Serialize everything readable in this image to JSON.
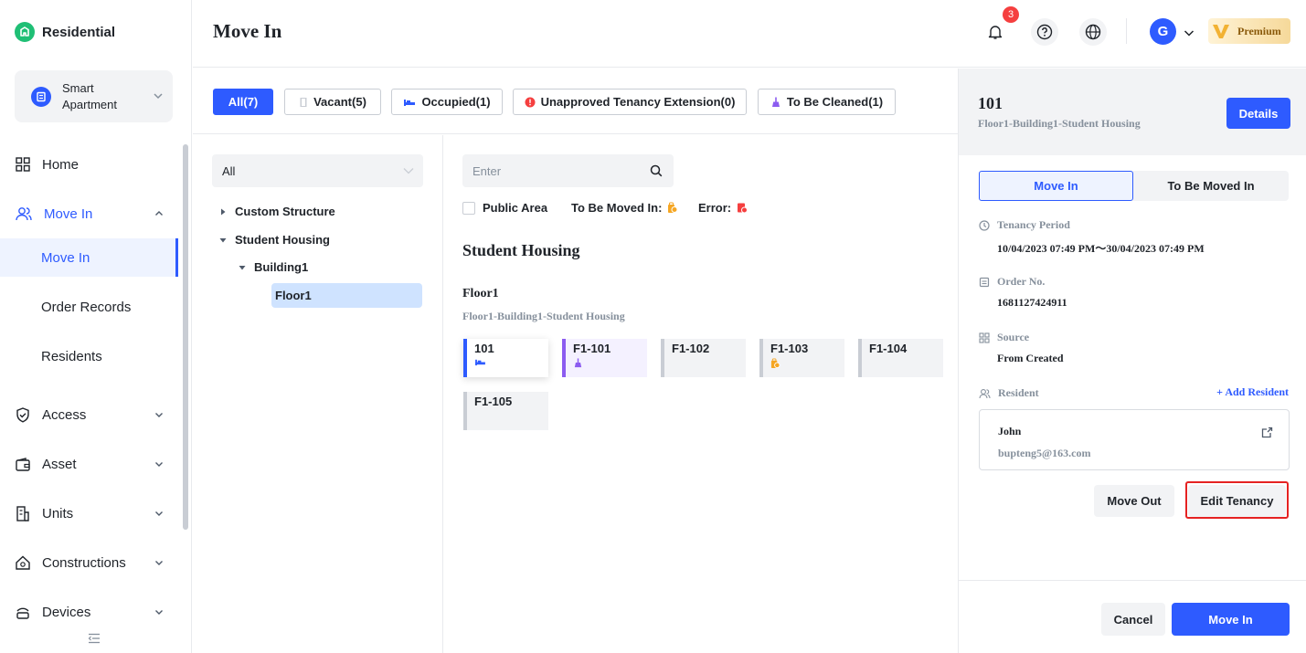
{
  "app": {
    "name": "Residential"
  },
  "project": {
    "name": "Smart Apartment"
  },
  "sidebar": {
    "items": [
      {
        "label": "Home"
      },
      {
        "label": "Move In"
      },
      {
        "label": "Access"
      },
      {
        "label": "Asset"
      },
      {
        "label": "Units"
      },
      {
        "label": "Constructions"
      },
      {
        "label": "Devices"
      }
    ],
    "move_in_sub": [
      {
        "label": "Move In"
      },
      {
        "label": "Order Records"
      },
      {
        "label": "Residents"
      }
    ]
  },
  "header": {
    "title": "Move In",
    "notification_count": "3",
    "avatar_letter": "G",
    "premium_label": "Premium"
  },
  "filter_tabs": [
    {
      "label": "All(7)",
      "icon": "none"
    },
    {
      "label": "Vacant(5)",
      "icon": "door-icon"
    },
    {
      "label": "Occupied(1)",
      "icon": "bed-icon"
    },
    {
      "label": "Unapproved Tenancy Extension(0)",
      "icon": "alert-icon"
    },
    {
      "label": "To Be Cleaned(1)",
      "icon": "broom-icon"
    }
  ],
  "tree": {
    "select_value": "All",
    "nodes": [
      {
        "label": "Custom Structure"
      },
      {
        "label": "Student Housing"
      },
      {
        "label": "Building1"
      },
      {
        "label": "Floor1"
      }
    ]
  },
  "rooms_panel": {
    "search_placeholder": "Enter",
    "public_area_label": "Public Area",
    "to_be_moved_in_label": "To Be Moved In:",
    "error_label": "Error:",
    "section_title": "Student Housing",
    "floor_name": "Floor1",
    "floor_path": "Floor1-Building1-Student Housing",
    "rooms": [
      {
        "name": "101",
        "status": "occupied"
      },
      {
        "name": "F1-101",
        "status": "to-be-cleaned"
      },
      {
        "name": "F1-102",
        "status": "vacant"
      },
      {
        "name": "F1-103",
        "status": "to-be-moved-in"
      },
      {
        "name": "F1-104",
        "status": "vacant"
      },
      {
        "name": "F1-105",
        "status": "vacant"
      }
    ]
  },
  "detail": {
    "room_number": "101",
    "room_path": "Floor1-Building1-Student Housing",
    "details_button": "Details",
    "tabs": [
      {
        "label": "Move In"
      },
      {
        "label": "To Be Moved In"
      }
    ],
    "tenancy_period_label": "Tenancy Period",
    "tenancy_period_value": "10/04/2023 07:49 PM～30/04/2023 07:49 PM",
    "order_no_label": "Order No.",
    "order_no_value": "1681127424911",
    "source_label": "Source",
    "source_value": "From Created",
    "resident_label": "Resident",
    "add_resident": "+ Add Resident",
    "resident_name": "John",
    "resident_email": "bupteng5@163.com",
    "move_out_button": "Move Out",
    "edit_tenancy_button": "Edit Tenancy",
    "cancel_button": "Cancel",
    "move_in_button": "Move In"
  },
  "colors": {
    "accent": "#2e5bff",
    "danger": "#f53f3f",
    "cleaning": "#8c5cf0",
    "warning": "#f5a623"
  }
}
